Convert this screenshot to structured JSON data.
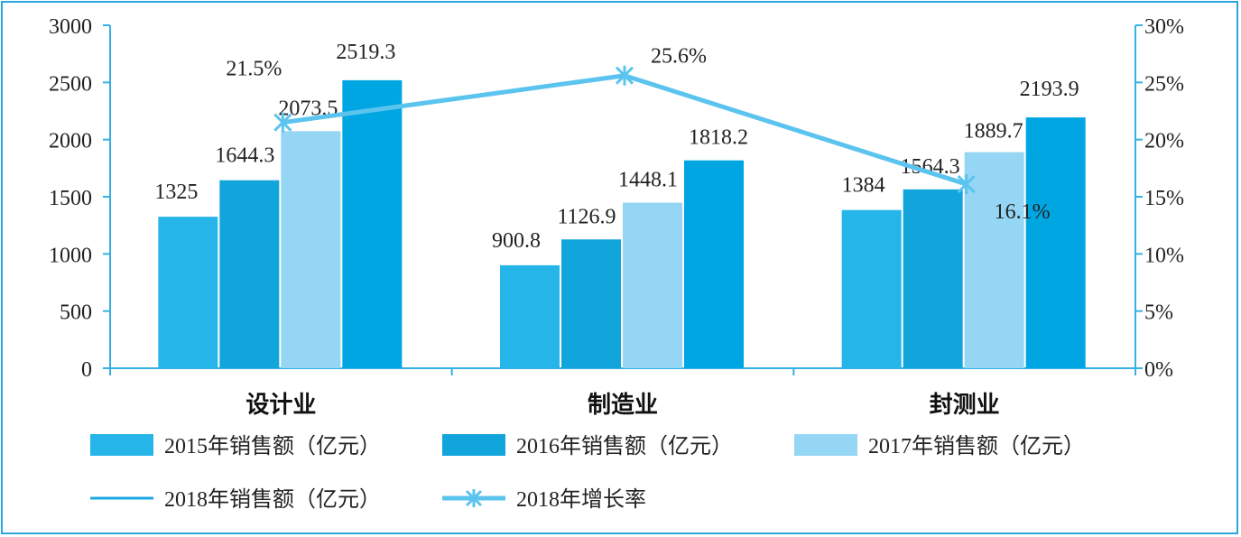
{
  "chart_data": {
    "type": "bar",
    "categories": [
      "设计业",
      "制造业",
      "封测业"
    ],
    "series": [
      {
        "name": "2015年销售额（亿元）",
        "type": "bar",
        "axis": "left",
        "color": "#26b5e8",
        "values": [
          1325,
          900.8,
          1384
        ]
      },
      {
        "name": "2016年销售额（亿元）",
        "type": "bar",
        "axis": "left",
        "color": "#12a5dc",
        "values": [
          1644.3,
          1126.9,
          1564.3
        ]
      },
      {
        "name": "2017年销售额（亿元）",
        "type": "bar",
        "axis": "left",
        "color": "#94d6f3",
        "values": [
          2073.5,
          1448.1,
          1889.7
        ]
      },
      {
        "name": "2018年销售额（亿元）",
        "type": "bar",
        "axis": "left",
        "color": "#00a6e2",
        "values": [
          2519.3,
          1818.2,
          2193.9
        ]
      },
      {
        "name": "2018年增长率",
        "type": "line",
        "axis": "right",
        "color": "#5bc4ee",
        "values": [
          21.5,
          25.6,
          16.1
        ]
      }
    ],
    "data_labels": {
      "bars": [
        [
          "1325",
          "1644.3",
          "2073.5",
          "2519.3"
        ],
        [
          "900.8",
          "1126.9",
          "1448.1",
          "1818.2"
        ],
        [
          "1384",
          "1564.3",
          "1889.7",
          "2193.9"
        ]
      ],
      "line": [
        "21.5%",
        "25.6%",
        "16.1%"
      ]
    },
    "left_axis": {
      "ylim": [
        0,
        3000
      ],
      "ticks": [
        "0",
        "500",
        "1000",
        "1500",
        "2000",
        "2500",
        "3000"
      ]
    },
    "right_axis": {
      "ylim": [
        0,
        30
      ],
      "ticks": [
        "0%",
        "5%",
        "10%",
        "15%",
        "20%",
        "25%",
        "30%"
      ]
    },
    "legend": {
      "placement": "bottom",
      "items": [
        {
          "label": "2015年销售额（亿元）",
          "kind": "bar",
          "color": "#26b5e8"
        },
        {
          "label": "2016年销售额（亿元）",
          "kind": "bar",
          "color": "#12a5dc"
        },
        {
          "label": "2017年销售额（亿元）",
          "kind": "bar",
          "color": "#94d6f3"
        },
        {
          "label": "2018年销售额（亿元）",
          "kind": "line",
          "color": "#1aa9e0"
        },
        {
          "label": "2018年增长率",
          "kind": "line-marker",
          "color": "#5bc4ee"
        }
      ]
    },
    "grid": false
  }
}
